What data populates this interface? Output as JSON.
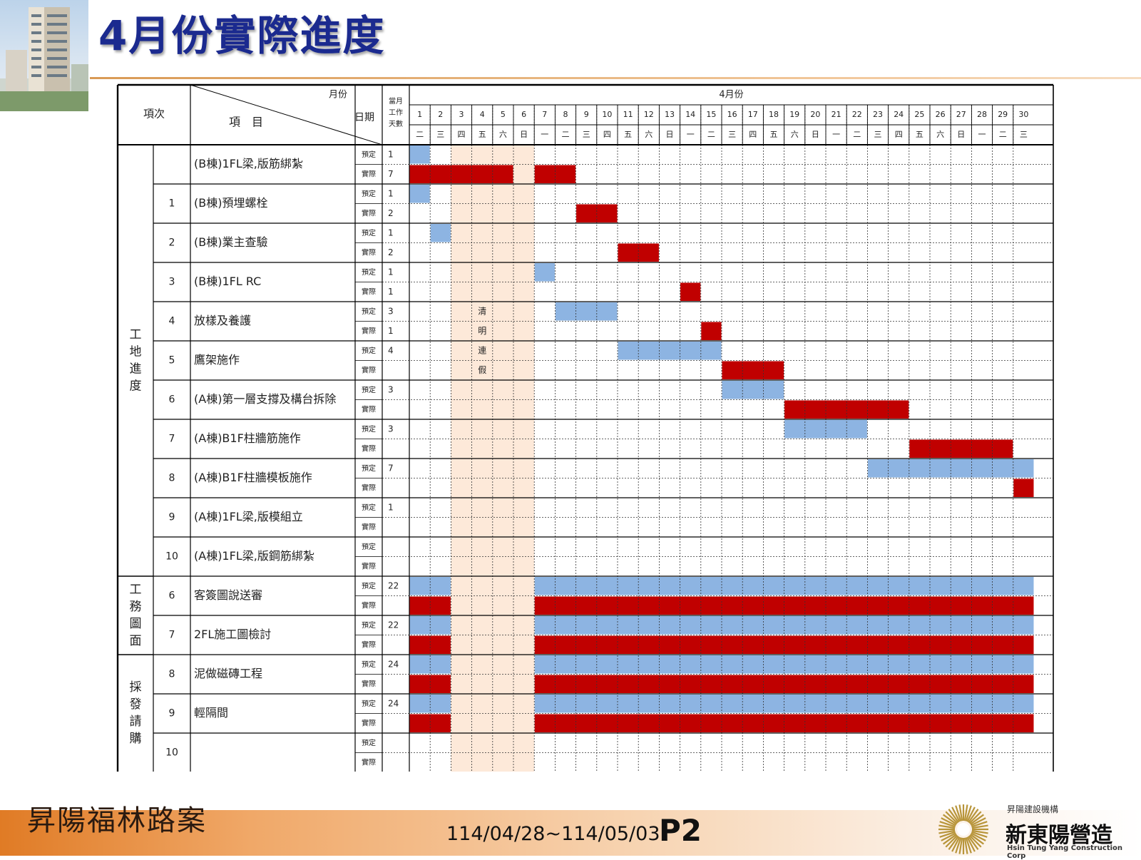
{
  "title": "4月份實際進度",
  "header": {
    "col_no": "項次",
    "col_item": "項　目",
    "col_month": "月份",
    "col_date": "日期",
    "col_days": [
      "當月",
      "工作",
      "天數"
    ],
    "month": "4月份",
    "plan_label": "預定",
    "actual_label": "實際",
    "holiday_text": [
      "清",
      "明",
      "連",
      "假"
    ]
  },
  "days": [
    {
      "d": "1",
      "w": "二"
    },
    {
      "d": "2",
      "w": "三"
    },
    {
      "d": "3",
      "w": "四"
    },
    {
      "d": "4",
      "w": "五"
    },
    {
      "d": "5",
      "w": "六"
    },
    {
      "d": "6",
      "w": "日"
    },
    {
      "d": "7",
      "w": "一"
    },
    {
      "d": "8",
      "w": "二"
    },
    {
      "d": "9",
      "w": "三"
    },
    {
      "d": "10",
      "w": "四"
    },
    {
      "d": "11",
      "w": "五"
    },
    {
      "d": "12",
      "w": "六"
    },
    {
      "d": "13",
      "w": "日"
    },
    {
      "d": "14",
      "w": "一"
    },
    {
      "d": "15",
      "w": "二"
    },
    {
      "d": "16",
      "w": "三"
    },
    {
      "d": "17",
      "w": "四"
    },
    {
      "d": "18",
      "w": "五"
    },
    {
      "d": "19",
      "w": "六"
    },
    {
      "d": "20",
      "w": "日"
    },
    {
      "d": "21",
      "w": "一"
    },
    {
      "d": "22",
      "w": "二"
    },
    {
      "d": "23",
      "w": "三"
    },
    {
      "d": "24",
      "w": "四"
    },
    {
      "d": "25",
      "w": "五"
    },
    {
      "d": "26",
      "w": "六"
    },
    {
      "d": "27",
      "w": "日"
    },
    {
      "d": "28",
      "w": "一"
    },
    {
      "d": "29",
      "w": "二"
    },
    {
      "d": "30",
      "w": "三"
    }
  ],
  "holiday_days": [
    3,
    4,
    5,
    6
  ],
  "colors": {
    "plan": "#8db4e2",
    "actual": "#c00000",
    "holiday": "#fde9d9",
    "title": "#1b2a8f",
    "footer_orange": "#e07b25"
  },
  "groups": [
    {
      "label": [
        "工",
        "地",
        "進",
        "度"
      ],
      "rows": 11
    },
    {
      "label": [
        "工",
        "務",
        "圖",
        "面"
      ],
      "rows": 2
    },
    {
      "label": [
        "採",
        "發",
        "請",
        "購"
      ],
      "rows": 3
    }
  ],
  "tasks": [
    {
      "no": "",
      "name": "(B棟)1FL梁,版筋綁紮",
      "plan_days": "1",
      "actual_days": "7",
      "plan": [
        [
          1,
          1
        ]
      ],
      "actual": [
        [
          1,
          5
        ],
        [
          7,
          8
        ]
      ]
    },
    {
      "no": "1",
      "name": "(B棟)預埋螺栓",
      "plan_days": "1",
      "actual_days": "2",
      "plan": [
        [
          1,
          1
        ]
      ],
      "actual": [
        [
          9,
          10
        ]
      ]
    },
    {
      "no": "2",
      "name": "(B棟)業主查驗",
      "plan_days": "1",
      "actual_days": "2",
      "plan": [
        [
          2,
          2
        ]
      ],
      "actual": [
        [
          11,
          12
        ]
      ]
    },
    {
      "no": "3",
      "name": "(B棟)1FL  RC",
      "plan_days": "1",
      "actual_days": "1",
      "plan": [
        [
          7,
          7
        ]
      ],
      "actual": [
        [
          14,
          14
        ]
      ]
    },
    {
      "no": "4",
      "name": "放樣及養護",
      "plan_days": "3",
      "actual_days": "1",
      "plan": [
        [
          8,
          10
        ]
      ],
      "actual": [
        [
          15,
          15
        ]
      ]
    },
    {
      "no": "5",
      "name": "鷹架施作",
      "plan_days": "4",
      "actual_days": "",
      "plan": [
        [
          11,
          15
        ]
      ],
      "actual": [
        [
          16,
          18
        ]
      ]
    },
    {
      "no": "6",
      "name": "(A棟)第一層支撐及構台拆除",
      "plan_days": "3",
      "actual_days": "",
      "plan": [
        [
          16,
          18
        ]
      ],
      "actual": [
        [
          19,
          24
        ]
      ]
    },
    {
      "no": "7",
      "name": "(A棟)B1F柱牆筋施作",
      "plan_days": "3",
      "actual_days": "",
      "plan": [
        [
          19,
          22
        ]
      ],
      "actual": [
        [
          25,
          29
        ]
      ]
    },
    {
      "no": "8",
      "name": "(A棟)B1F柱牆模板施作",
      "plan_days": "7",
      "actual_days": "",
      "plan": [
        [
          23,
          30
        ]
      ],
      "actual": [
        [
          30,
          30
        ]
      ]
    },
    {
      "no": "9",
      "name": "(A棟)1FL梁,版模組立",
      "plan_days": "1",
      "actual_days": "",
      "plan": [],
      "actual": []
    },
    {
      "no": "10",
      "name": "(A棟)1FL梁,版鋼筋綁紮",
      "plan_days": "",
      "actual_days": "",
      "plan": [],
      "actual": []
    },
    {
      "no": "6",
      "name": "客簽圖說送審",
      "plan_days": "22",
      "actual_days": "",
      "plan": [
        [
          1,
          2
        ],
        [
          7,
          30
        ]
      ],
      "actual": [
        [
          1,
          2
        ],
        [
          7,
          30
        ]
      ]
    },
    {
      "no": "7",
      "name": "2FL施工圖檢討",
      "plan_days": "22",
      "actual_days": "",
      "plan": [
        [
          1,
          2
        ],
        [
          7,
          30
        ]
      ],
      "actual": [
        [
          1,
          2
        ],
        [
          7,
          30
        ]
      ]
    },
    {
      "no": "8",
      "name": "泥做磁磚工程",
      "plan_days": "24",
      "actual_days": "",
      "plan": [
        [
          1,
          2
        ],
        [
          7,
          30
        ]
      ],
      "actual": [
        [
          1,
          2
        ],
        [
          7,
          30
        ]
      ]
    },
    {
      "no": "9",
      "name": "輕隔間",
      "plan_days": "24",
      "actual_days": "",
      "plan": [
        [
          1,
          2
        ],
        [
          7,
          30
        ]
      ],
      "actual": [
        [
          1,
          2
        ],
        [
          7,
          30
        ]
      ]
    },
    {
      "no": "10",
      "name": "",
      "plan_days": "",
      "actual_days": "",
      "plan": [],
      "actual": []
    }
  ],
  "footer": {
    "project": "昇陽福林路案",
    "date_range": "114/04/28~114/05/03",
    "page": "P2",
    "company_small": "昇陽建設機構",
    "company_name": "新東陽營造",
    "company_en": "Hsin Tung Yang Construction Corp"
  }
}
